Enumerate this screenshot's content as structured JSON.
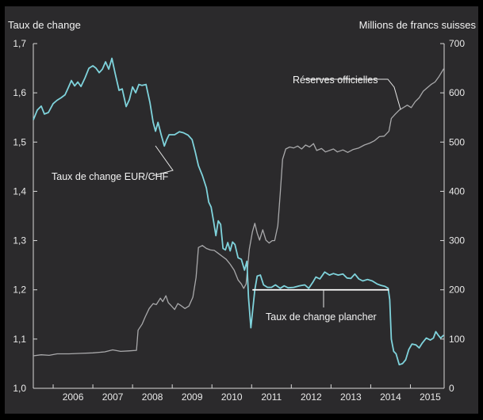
{
  "chart_data": {
    "type": "line",
    "left_axis_title": "Taux de change",
    "right_axis_title": "Millions de francs suisses",
    "left_ticks": [
      "1,0",
      "1,1",
      "1,2",
      "1,3",
      "1,4",
      "1,5",
      "1,6",
      "1,7"
    ],
    "right_ticks": [
      "0",
      "100",
      "200",
      "300",
      "400",
      "500",
      "600",
      "700"
    ],
    "x_labels": [
      "2006",
      "2007",
      "2008",
      "2009",
      "2010",
      "2011",
      "2012",
      "2013",
      "2014",
      "2015"
    ],
    "ylim_left": [
      1.0,
      1.7
    ],
    "ylim_right": [
      0,
      700
    ],
    "xlim": [
      2005.5,
      2015.85
    ],
    "series": [
      {
        "name": "Taux de change EUR/CHF",
        "axis": "left",
        "color": "#7fd3dc",
        "points": [
          [
            2005.5,
            1.545
          ],
          [
            2005.6,
            1.565
          ],
          [
            2005.7,
            1.573
          ],
          [
            2005.78,
            1.557
          ],
          [
            2005.88,
            1.56
          ],
          [
            2006.0,
            1.578
          ],
          [
            2006.1,
            1.585
          ],
          [
            2006.2,
            1.59
          ],
          [
            2006.3,
            1.596
          ],
          [
            2006.38,
            1.61
          ],
          [
            2006.46,
            1.625
          ],
          [
            2006.54,
            1.614
          ],
          [
            2006.62,
            1.622
          ],
          [
            2006.7,
            1.613
          ],
          [
            2006.8,
            1.63
          ],
          [
            2006.9,
            1.65
          ],
          [
            2007.0,
            1.655
          ],
          [
            2007.08,
            1.65
          ],
          [
            2007.16,
            1.641
          ],
          [
            2007.24,
            1.648
          ],
          [
            2007.32,
            1.663
          ],
          [
            2007.4,
            1.648
          ],
          [
            2007.48,
            1.67
          ],
          [
            2007.56,
            1.64
          ],
          [
            2007.66,
            1.605
          ],
          [
            2007.74,
            1.608
          ],
          [
            2007.84,
            1.572
          ],
          [
            2007.92,
            1.586
          ],
          [
            2008.0,
            1.612
          ],
          [
            2008.08,
            1.6
          ],
          [
            2008.16,
            1.617
          ],
          [
            2008.24,
            1.615
          ],
          [
            2008.34,
            1.617
          ],
          [
            2008.44,
            1.58
          ],
          [
            2008.52,
            1.54
          ],
          [
            2008.58,
            1.522
          ],
          [
            2008.64,
            1.54
          ],
          [
            2008.72,
            1.515
          ],
          [
            2008.8,
            1.492
          ],
          [
            2008.86,
            1.505
          ],
          [
            2008.92,
            1.515
          ],
          [
            2009.06,
            1.515
          ],
          [
            2009.18,
            1.521
          ],
          [
            2009.28,
            1.519
          ],
          [
            2009.4,
            1.514
          ],
          [
            2009.5,
            1.505
          ],
          [
            2009.58,
            1.48
          ],
          [
            2009.66,
            1.452
          ],
          [
            2009.76,
            1.432
          ],
          [
            2009.86,
            1.407
          ],
          [
            2009.92,
            1.378
          ],
          [
            2009.98,
            1.368
          ],
          [
            2010.04,
            1.34
          ],
          [
            2010.1,
            1.31
          ],
          [
            2010.16,
            1.34
          ],
          [
            2010.22,
            1.333
          ],
          [
            2010.28,
            1.284
          ],
          [
            2010.34,
            1.281
          ],
          [
            2010.4,
            1.296
          ],
          [
            2010.46,
            1.279
          ],
          [
            2010.52,
            1.297
          ],
          [
            2010.58,
            1.292
          ],
          [
            2010.66,
            1.265
          ],
          [
            2010.74,
            1.262
          ],
          [
            2010.82,
            1.24
          ],
          [
            2010.88,
            1.258
          ],
          [
            2010.92,
            1.185
          ],
          [
            2010.98,
            1.123
          ],
          [
            2011.08,
            1.2
          ],
          [
            2011.14,
            1.228
          ],
          [
            2011.22,
            1.23
          ],
          [
            2011.3,
            1.21
          ],
          [
            2011.4,
            1.205
          ],
          [
            2011.5,
            1.205
          ],
          [
            2011.6,
            1.21
          ],
          [
            2011.72,
            1.203
          ],
          [
            2011.82,
            1.208
          ],
          [
            2011.92,
            1.204
          ],
          [
            2012.06,
            1.205
          ],
          [
            2012.2,
            1.208
          ],
          [
            2012.34,
            1.21
          ],
          [
            2012.44,
            1.203
          ],
          [
            2012.54,
            1.215
          ],
          [
            2012.62,
            1.226
          ],
          [
            2012.72,
            1.222
          ],
          [
            2012.84,
            1.236
          ],
          [
            2012.96,
            1.23
          ],
          [
            2013.06,
            1.233
          ],
          [
            2013.18,
            1.23
          ],
          [
            2013.3,
            1.232
          ],
          [
            2013.4,
            1.224
          ],
          [
            2013.5,
            1.223
          ],
          [
            2013.6,
            1.232
          ],
          [
            2013.7,
            1.222
          ],
          [
            2013.8,
            1.218
          ],
          [
            2013.92,
            1.221
          ],
          [
            2014.04,
            1.218
          ],
          [
            2014.16,
            1.212
          ],
          [
            2014.26,
            1.209
          ],
          [
            2014.36,
            1.207
          ],
          [
            2014.44,
            1.203
          ],
          [
            2014.48,
            1.18
          ],
          [
            2014.52,
            1.1
          ],
          [
            2014.58,
            1.075
          ],
          [
            2014.64,
            1.07
          ],
          [
            2014.72,
            1.048
          ],
          [
            2014.8,
            1.05
          ],
          [
            2014.88,
            1.058
          ],
          [
            2014.96,
            1.079
          ],
          [
            2015.04,
            1.09
          ],
          [
            2015.14,
            1.088
          ],
          [
            2015.22,
            1.082
          ],
          [
            2015.3,
            1.092
          ],
          [
            2015.4,
            1.102
          ],
          [
            2015.5,
            1.098
          ],
          [
            2015.58,
            1.102
          ],
          [
            2015.64,
            1.115
          ],
          [
            2015.7,
            1.108
          ],
          [
            2015.76,
            1.102
          ],
          [
            2015.84,
            1.108
          ]
        ]
      },
      {
        "name": "Réserves officielles",
        "axis": "right",
        "color": "#a9a9ab",
        "points": [
          [
            2005.5,
            66
          ],
          [
            2005.7,
            68
          ],
          [
            2005.9,
            67
          ],
          [
            2006.1,
            70
          ],
          [
            2006.4,
            70
          ],
          [
            2006.7,
            71
          ],
          [
            2007.0,
            72
          ],
          [
            2007.3,
            74
          ],
          [
            2007.5,
            78
          ],
          [
            2007.7,
            75
          ],
          [
            2007.9,
            76
          ],
          [
            2008.1,
            77
          ],
          [
            2008.14,
            118
          ],
          [
            2008.24,
            130
          ],
          [
            2008.32,
            145
          ],
          [
            2008.42,
            162
          ],
          [
            2008.52,
            172
          ],
          [
            2008.6,
            170
          ],
          [
            2008.7,
            183
          ],
          [
            2008.76,
            176
          ],
          [
            2008.84,
            188
          ],
          [
            2008.9,
            174
          ],
          [
            2008.96,
            169
          ],
          [
            2009.06,
            160
          ],
          [
            2009.14,
            172
          ],
          [
            2009.22,
            168
          ],
          [
            2009.32,
            162
          ],
          [
            2009.42,
            167
          ],
          [
            2009.52,
            185
          ],
          [
            2009.6,
            225
          ],
          [
            2009.66,
            286
          ],
          [
            2009.76,
            290
          ],
          [
            2009.86,
            284
          ],
          [
            2009.96,
            281
          ],
          [
            2010.06,
            280
          ],
          [
            2010.16,
            274
          ],
          [
            2010.26,
            268
          ],
          [
            2010.36,
            262
          ],
          [
            2010.46,
            252
          ],
          [
            2010.56,
            240
          ],
          [
            2010.66,
            220
          ],
          [
            2010.74,
            212
          ],
          [
            2010.8,
            203
          ],
          [
            2010.86,
            212
          ],
          [
            2010.94,
            282
          ],
          [
            2011.02,
            318
          ],
          [
            2011.08,
            335
          ],
          [
            2011.14,
            315
          ],
          [
            2011.2,
            301
          ],
          [
            2011.28,
            322
          ],
          [
            2011.36,
            301
          ],
          [
            2011.44,
            295
          ],
          [
            2011.52,
            300
          ],
          [
            2011.58,
            300
          ],
          [
            2011.66,
            330
          ],
          [
            2011.72,
            395
          ],
          [
            2011.78,
            465
          ],
          [
            2011.86,
            486
          ],
          [
            2011.96,
            490
          ],
          [
            2012.06,
            488
          ],
          [
            2012.16,
            492
          ],
          [
            2012.26,
            486
          ],
          [
            2012.36,
            494
          ],
          [
            2012.46,
            490
          ],
          [
            2012.56,
            497
          ],
          [
            2012.64,
            483
          ],
          [
            2012.76,
            487
          ],
          [
            2012.86,
            480
          ],
          [
            2012.96,
            483
          ],
          [
            2013.06,
            486
          ],
          [
            2013.16,
            480
          ],
          [
            2013.3,
            484
          ],
          [
            2013.42,
            479
          ],
          [
            2013.56,
            485
          ],
          [
            2013.7,
            488
          ],
          [
            2013.84,
            494
          ],
          [
            2013.98,
            498
          ],
          [
            2014.1,
            503
          ],
          [
            2014.22,
            511
          ],
          [
            2014.34,
            512
          ],
          [
            2014.46,
            522
          ],
          [
            2014.52,
            548
          ],
          [
            2014.62,
            557
          ],
          [
            2014.72,
            565
          ],
          [
            2014.82,
            570
          ],
          [
            2014.92,
            575
          ],
          [
            2015.02,
            570
          ],
          [
            2015.12,
            582
          ],
          [
            2015.22,
            590
          ],
          [
            2015.32,
            603
          ],
          [
            2015.42,
            610
          ],
          [
            2015.52,
            617
          ],
          [
            2015.62,
            622
          ],
          [
            2015.72,
            633
          ],
          [
            2015.84,
            649
          ]
        ]
      }
    ],
    "floor": {
      "value": 1.2,
      "x_start": 2011.02,
      "x_end": 2014.46,
      "color": "#ffffff"
    },
    "annotations": [
      {
        "text": "Réserves officielles"
      },
      {
        "text": "Taux de change EUR/CHF"
      },
      {
        "text": "Taux de change plancher"
      }
    ]
  }
}
